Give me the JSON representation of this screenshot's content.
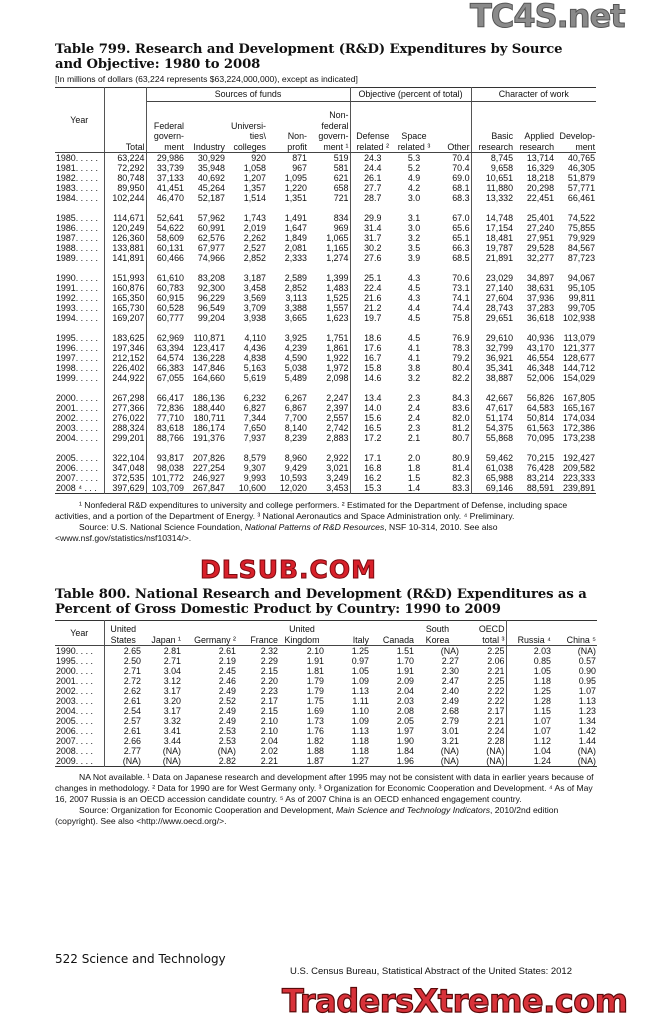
{
  "table799": {
    "title": "Table 799. Research and Development (R&D) Expenditures by Source and Objective: 1980 to 2008",
    "subtitle": "[In millions of dollars (63,224 represents $63,224,000,000), except as indicated]",
    "groups": {
      "sources": "Sources of funds",
      "objective": "Objective (percent of total)",
      "character": "Character of work"
    },
    "columns": [
      "Year",
      "Total",
      "Federal\ngovern-\nment",
      "Industry",
      "Universi-\nties\\\ncolleges",
      "Non-\nprofit",
      "Non-\nfederal\ngovern-\nment ¹",
      "Defense\nrelated ²",
      "Space\nrelated ³",
      "Other",
      "Basic\nresearch",
      "Applied\nresearch",
      "Develop-\nment"
    ],
    "row_groups": [
      [
        [
          "1980. . . . .",
          "63,224",
          "29,986",
          "30,929",
          "920",
          "871",
          "519",
          "24.3",
          "5.3",
          "70.4",
          "8,745",
          "13,714",
          "40,765"
        ],
        [
          "1981. . . . .",
          "72,292",
          "33,739",
          "35,948",
          "1,058",
          "967",
          "581",
          "24.4",
          "5.2",
          "70.4",
          "9,658",
          "16,329",
          "46,305"
        ],
        [
          "1982. . . . .",
          "80,748",
          "37,133",
          "40,692",
          "1,207",
          "1,095",
          "621",
          "26.1",
          "4.9",
          "69.0",
          "10,651",
          "18,218",
          "51,879"
        ],
        [
          "1983. . . . .",
          "89,950",
          "41,451",
          "45,264",
          "1,357",
          "1,220",
          "658",
          "27.7",
          "4.2",
          "68.1",
          "11,880",
          "20,298",
          "57,771"
        ],
        [
          "1984. . . . .",
          "102,244",
          "46,470",
          "52,187",
          "1,514",
          "1,351",
          "721",
          "28.7",
          "3.0",
          "68.3",
          "13,332",
          "22,451",
          "66,461"
        ]
      ],
      [
        [
          "1985. . . . .",
          "114,671",
          "52,641",
          "57,962",
          "1,743",
          "1,491",
          "834",
          "29.9",
          "3.1",
          "67.0",
          "14,748",
          "25,401",
          "74,522"
        ],
        [
          "1986. . . . .",
          "120,249",
          "54,622",
          "60,991",
          "2,019",
          "1,647",
          "969",
          "31.4",
          "3.0",
          "65.6",
          "17,154",
          "27,240",
          "75,855"
        ],
        [
          "1987. . . . .",
          "126,360",
          "58,609",
          "62,576",
          "2,262",
          "1,849",
          "1,065",
          "31.7",
          "3.2",
          "65.1",
          "18,481",
          "27,951",
          "79,929"
        ],
        [
          "1988. . . . .",
          "133,881",
          "60,131",
          "67,977",
          "2,527",
          "2,081",
          "1,165",
          "30.2",
          "3.5",
          "66.3",
          "19,787",
          "29,528",
          "84,567"
        ],
        [
          "1989. . . . .",
          "141,891",
          "60,466",
          "74,966",
          "2,852",
          "2,333",
          "1,274",
          "27.6",
          "3.9",
          "68.5",
          "21,891",
          "32,277",
          "87,723"
        ]
      ],
      [
        [
          "1990. . . . .",
          "151,993",
          "61,610",
          "83,208",
          "3,187",
          "2,589",
          "1,399",
          "25.1",
          "4.3",
          "70.6",
          "23,029",
          "34,897",
          "94,067"
        ],
        [
          "1991. . . . .",
          "160,876",
          "60,783",
          "92,300",
          "3,458",
          "2,852",
          "1,483",
          "22.4",
          "4.5",
          "73.1",
          "27,140",
          "38,631",
          "95,105"
        ],
        [
          "1992. . . . .",
          "165,350",
          "60,915",
          "96,229",
          "3,569",
          "3,113",
          "1,525",
          "21.6",
          "4.3",
          "74.1",
          "27,604",
          "37,936",
          "99,811"
        ],
        [
          "1993. . . . .",
          "165,730",
          "60,528",
          "96,549",
          "3,709",
          "3,388",
          "1,557",
          "21.2",
          "4.4",
          "74.4",
          "28,743",
          "37,283",
          "99,705"
        ],
        [
          "1994. . . . .",
          "169,207",
          "60,777",
          "99,204",
          "3,938",
          "3,665",
          "1,623",
          "19.7",
          "4.5",
          "75.8",
          "29,651",
          "36,618",
          "102,938"
        ]
      ],
      [
        [
          "1995. . . . .",
          "183,625",
          "62,969",
          "110,871",
          "4,110",
          "3,925",
          "1,751",
          "18.6",
          "4.5",
          "76.9",
          "29,610",
          "40,936",
          "113,079"
        ],
        [
          "1996. . . . .",
          "197,346",
          "63,394",
          "123,417",
          "4,436",
          "4,239",
          "1,861",
          "17.6",
          "4.1",
          "78.3",
          "32,799",
          "43,170",
          "121,377"
        ],
        [
          "1997. . . . .",
          "212,152",
          "64,574",
          "136,228",
          "4,838",
          "4,590",
          "1,922",
          "16.7",
          "4.1",
          "79.2",
          "36,921",
          "46,554",
          "128,677"
        ],
        [
          "1998. . . . .",
          "226,402",
          "66,383",
          "147,846",
          "5,163",
          "5,038",
          "1,972",
          "15.8",
          "3.8",
          "80.4",
          "35,341",
          "46,348",
          "144,712"
        ],
        [
          "1999. . . . .",
          "244,922",
          "67,055",
          "164,660",
          "5,619",
          "5,489",
          "2,098",
          "14.6",
          "3.2",
          "82.2",
          "38,887",
          "52,006",
          "154,029"
        ]
      ],
      [
        [
          "2000. . . . .",
          "267,298",
          "66,417",
          "186,136",
          "6,232",
          "6,267",
          "2,247",
          "13.4",
          "2.3",
          "84.3",
          "42,667",
          "56,826",
          "167,805"
        ],
        [
          "2001. . . . .",
          "277,366",
          "72,836",
          "188,440",
          "6,827",
          "6,867",
          "2,397",
          "14.0",
          "2.4",
          "83.6",
          "47,617",
          "64,583",
          "165,167"
        ],
        [
          "2002. . . . .",
          "276,022",
          "77,710",
          "180,711",
          "7,344",
          "7,700",
          "2,557",
          "15.6",
          "2.4",
          "82.0",
          "51,174",
          "50,814",
          "174,034"
        ],
        [
          "2003. . . . .",
          "288,324",
          "83,618",
          "186,174",
          "7,650",
          "8,140",
          "2,742",
          "16.5",
          "2.3",
          "81.2",
          "54,375",
          "61,563",
          "172,386"
        ],
        [
          "2004. . . . .",
          "299,201",
          "88,766",
          "191,376",
          "7,937",
          "8,239",
          "2,883",
          "17.2",
          "2.1",
          "80.7",
          "55,868",
          "70,095",
          "173,238"
        ]
      ],
      [
        [
          "2005. . . . .",
          "322,104",
          "93,817",
          "207,826",
          "8,579",
          "8,960",
          "2,922",
          "17.1",
          "2.0",
          "80.9",
          "59,462",
          "70,215",
          "192,427"
        ],
        [
          "2006. . . . .",
          "347,048",
          "98,038",
          "227,254",
          "9,307",
          "9,429",
          "3,021",
          "16.8",
          "1.8",
          "81.4",
          "61,038",
          "76,428",
          "209,582"
        ],
        [
          "2007. . . . .",
          "372,535",
          "101,772",
          "246,927",
          "9,993",
          "10,593",
          "3,249",
          "16.2",
          "1.5",
          "82.3",
          "65,988",
          "83,214",
          "223,333"
        ],
        [
          "2008 ⁴ . . .",
          "397,629",
          "103,709",
          "267,847",
          "10,600",
          "12,020",
          "3,453",
          "15.3",
          "1.4",
          "83.3",
          "69,146",
          "88,591",
          "239,891"
        ]
      ]
    ],
    "footnote": "¹ Nonfederal R&D expenditures to university and college performers. ² Estimated for the Department of Defense, including space activities, and a portion of the Department of Energy. ³ National Aeronautics and Space Administration only. ⁴ Preliminary.",
    "source_prefix": "Source: U.S. National Science Foundation, ",
    "source_title": "National Patterns of R&D Resources",
    "source_suffix": ", NSF 10-314, 2010. See also <www.nsf.gov/statistics/nsf10314/>."
  },
  "table800": {
    "title": "Table 800. National Research and Development (R&D) Expenditures as a Percent of Gross Domestic Product by Country: 1990 to 2009",
    "columns": [
      "Year",
      "United\nStates",
      "Japan ¹",
      "Germany ²",
      "France",
      "United\nKingdom",
      "Italy",
      "Canada",
      "South\nKorea",
      "OECD\ntotal ³",
      "Russia ⁴",
      "China ⁵"
    ],
    "rows": [
      [
        "1990. . . .",
        "2.65",
        "2.81",
        "2.61",
        "2.32",
        "2.10",
        "1.25",
        "1.51",
        "(NA)",
        "2.25",
        "2.03",
        "(NA)"
      ],
      [
        "1995. . . .",
        "2.50",
        "2.71",
        "2.19",
        "2.29",
        "1.91",
        "0.97",
        "1.70",
        "2.27",
        "2.06",
        "0.85",
        "0.57"
      ],
      [
        "2000. . . .",
        "2.71",
        "3.04",
        "2.45",
        "2.15",
        "1.81",
        "1.05",
        "1.91",
        "2.30",
        "2.21",
        "1.05",
        "0.90"
      ],
      [
        "2001. . . .",
        "2.72",
        "3.12",
        "2.46",
        "2.20",
        "1.79",
        "1.09",
        "2.09",
        "2.47",
        "2.25",
        "1.18",
        "0.95"
      ],
      [
        "2002. . . .",
        "2.62",
        "3.17",
        "2.49",
        "2.23",
        "1.79",
        "1.13",
        "2.04",
        "2.40",
        "2.22",
        "1.25",
        "1.07"
      ],
      [
        "2003. . . .",
        "2.61",
        "3.20",
        "2.52",
        "2.17",
        "1.75",
        "1.11",
        "2.03",
        "2.49",
        "2.22",
        "1.28",
        "1.13"
      ],
      [
        "2004. . . .",
        "2.54",
        "3.17",
        "2.49",
        "2.15",
        "1.69",
        "1.10",
        "2.08",
        "2.68",
        "2.17",
        "1.15",
        "1.23"
      ],
      [
        "2005. . . .",
        "2.57",
        "3.32",
        "2.49",
        "2.10",
        "1.73",
        "1.09",
        "2.05",
        "2.79",
        "2.21",
        "1.07",
        "1.34"
      ],
      [
        "2006. . . .",
        "2.61",
        "3.41",
        "2.53",
        "2.10",
        "1.76",
        "1.13",
        "1.97",
        "3.01",
        "2.24",
        "1.07",
        "1.42"
      ],
      [
        "2007. . . .",
        "2.66",
        "3.44",
        "2.53",
        "2.04",
        "1.82",
        "1.18",
        "1.90",
        "3.21",
        "2.28",
        "1.12",
        "1.44"
      ],
      [
        "2008. . . .",
        "2.77",
        "(NA)",
        "(NA)",
        "2.02",
        "1.88",
        "1.18",
        "1.84",
        "(NA)",
        "(NA)",
        "1.04",
        "(NA)"
      ],
      [
        "2009. . . .",
        "(NA)",
        "(NA)",
        "2.82",
        "2.21",
        "1.87",
        "1.27",
        "1.96",
        "(NA)",
        "(NA)",
        "1.24",
        "(NA)"
      ]
    ],
    "footnote": "NA Not available. ¹ Data on Japanese research and development after 1995 may not be consistent with data in earlier years because of changes in methodology. ² Data for 1990 are for West Germany only. ³ Organization for Economic Cooperation and Development. ⁴ As of May 16, 2007 Russia is an OECD accession candidate country. ⁵ As of 2007 China is an OECD enhanced engagement country.",
    "source_prefix": "Source: Organization for Economic Cooperation and Development, ",
    "source_title": "Main Science and Technology Indicators",
    "source_suffix": ", 2010/2nd edition (copyright). See also <http://www.oecd.org/>."
  },
  "footer": {
    "page": "522  Science and Technology",
    "publication": "U.S. Census Bureau, Statistical Abstract of the United States: 2012"
  },
  "watermarks": {
    "top": "TC4S.net",
    "middle": "DLSUB.COM",
    "bottom": "TradersXtreme.com"
  }
}
